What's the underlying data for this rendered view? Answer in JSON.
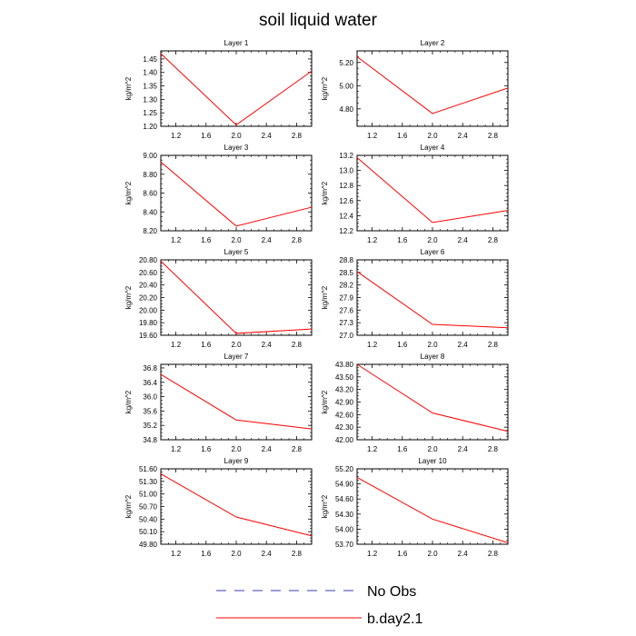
{
  "figure": {
    "title": "soil liquid water",
    "legend": [
      {
        "label": "No Obs",
        "color": "#3b3bb5",
        "style": "dashed"
      },
      {
        "label": "b.day2.1",
        "color": "#ff0000",
        "style": "solid"
      }
    ]
  },
  "chart_data": [
    {
      "type": "line",
      "title": "Layer 1",
      "ylabel": "kg/m^2",
      "xlim": [
        1.0,
        3.0
      ],
      "ylim": [
        1.2,
        1.48
      ],
      "x_ticks": [
        "1.2",
        "1.6",
        "2.0",
        "2.4",
        "2.8"
      ],
      "x_tick_values": [
        1.2,
        1.6,
        2.0,
        2.4,
        2.8
      ],
      "y_ticks": [
        "1.20",
        "1.25",
        "1.30",
        "1.35",
        "1.40",
        "1.45"
      ],
      "y_tick_values": [
        1.2,
        1.25,
        1.3,
        1.35,
        1.4,
        1.45
      ],
      "series": [
        {
          "name": "b.day2.1",
          "x": [
            1,
            2,
            3
          ],
          "values": [
            1.47,
            1.205,
            1.405
          ]
        }
      ]
    },
    {
      "type": "line",
      "title": "Layer 2",
      "ylabel": "kg/m^2",
      "xlim": [
        1.0,
        3.0
      ],
      "ylim": [
        4.65,
        5.3
      ],
      "x_ticks": [
        "1.2",
        "1.6",
        "2.0",
        "2.4",
        "2.8"
      ],
      "x_tick_values": [
        1.2,
        1.6,
        2.0,
        2.4,
        2.8
      ],
      "y_ticks": [
        "4.80",
        "5.00",
        "5.20"
      ],
      "y_tick_values": [
        4.8,
        5.0,
        5.2
      ],
      "series": [
        {
          "name": "b.day2.1",
          "x": [
            1,
            2,
            3
          ],
          "values": [
            5.25,
            4.76,
            4.98
          ]
        }
      ]
    },
    {
      "type": "line",
      "title": "Layer 3",
      "ylabel": "kg/m^2",
      "xlim": [
        1.0,
        3.0
      ],
      "ylim": [
        8.2,
        9.0
      ],
      "x_ticks": [
        "1.2",
        "1.6",
        "2.0",
        "2.4",
        "2.8"
      ],
      "x_tick_values": [
        1.2,
        1.6,
        2.0,
        2.4,
        2.8
      ],
      "y_ticks": [
        "8.20",
        "8.40",
        "8.60",
        "8.80",
        "9.00"
      ],
      "y_tick_values": [
        8.2,
        8.4,
        8.6,
        8.8,
        9.0
      ],
      "series": [
        {
          "name": "b.day2.1",
          "x": [
            1,
            2,
            3
          ],
          "values": [
            8.93,
            8.25,
            8.45
          ]
        }
      ]
    },
    {
      "type": "line",
      "title": "Layer 4",
      "ylabel": "kg/m^2",
      "xlim": [
        1.0,
        3.0
      ],
      "ylim": [
        12.2,
        13.2
      ],
      "x_ticks": [
        "1.2",
        "1.6",
        "2.0",
        "2.4",
        "2.8"
      ],
      "x_tick_values": [
        1.2,
        1.6,
        2.0,
        2.4,
        2.8
      ],
      "y_ticks": [
        "12.2",
        "12.4",
        "12.6",
        "12.8",
        "13.0",
        "13.2"
      ],
      "y_tick_values": [
        12.2,
        12.4,
        12.6,
        12.8,
        13.0,
        13.2
      ],
      "series": [
        {
          "name": "b.day2.1",
          "x": [
            1,
            2,
            3
          ],
          "values": [
            13.17,
            12.31,
            12.47
          ]
        }
      ]
    },
    {
      "type": "line",
      "title": "Layer 5",
      "ylabel": "kg/m^2",
      "xlim": [
        1.0,
        3.0
      ],
      "ylim": [
        19.6,
        20.8
      ],
      "x_ticks": [
        "1.2",
        "1.6",
        "2.0",
        "2.4",
        "2.8"
      ],
      "x_tick_values": [
        1.2,
        1.6,
        2.0,
        2.4,
        2.8
      ],
      "y_ticks": [
        "19.60",
        "19.80",
        "20.00",
        "20.20",
        "20.40",
        "20.60",
        "20.80"
      ],
      "y_tick_values": [
        19.6,
        19.8,
        20.0,
        20.2,
        20.4,
        20.6,
        20.8
      ],
      "series": [
        {
          "name": "b.day2.1",
          "x": [
            1,
            2,
            3
          ],
          "values": [
            20.78,
            19.63,
            19.7
          ]
        }
      ]
    },
    {
      "type": "line",
      "title": "Layer 6",
      "ylabel": "kg/m^2",
      "xlim": [
        1.0,
        3.0
      ],
      "ylim": [
        27.0,
        28.8
      ],
      "x_ticks": [
        "1.2",
        "1.6",
        "2.0",
        "2.4",
        "2.8"
      ],
      "x_tick_values": [
        1.2,
        1.6,
        2.0,
        2.4,
        2.8
      ],
      "y_ticks": [
        "27.0",
        "27.3",
        "27.6",
        "27.9",
        "28.2",
        "28.5",
        "28.8"
      ],
      "y_tick_values": [
        27.0,
        27.3,
        27.6,
        27.9,
        28.2,
        28.5,
        28.8
      ],
      "series": [
        {
          "name": "b.day2.1",
          "x": [
            1,
            2,
            3
          ],
          "values": [
            28.52,
            27.26,
            27.18
          ]
        }
      ]
    },
    {
      "type": "line",
      "title": "Layer 7",
      "ylabel": "kg/m^2",
      "xlim": [
        1.0,
        3.0
      ],
      "ylim": [
        34.8,
        36.9
      ],
      "x_ticks": [
        "1.2",
        "1.6",
        "2.0",
        "2.4",
        "2.8"
      ],
      "x_tick_values": [
        1.2,
        1.6,
        2.0,
        2.4,
        2.8
      ],
      "y_ticks": [
        "34.8",
        "35.2",
        "35.6",
        "36.0",
        "36.4",
        "36.8"
      ],
      "y_tick_values": [
        34.8,
        35.2,
        35.6,
        36.0,
        36.4,
        36.8
      ],
      "series": [
        {
          "name": "b.day2.1",
          "x": [
            1,
            2,
            3
          ],
          "values": [
            36.62,
            35.35,
            35.1
          ]
        }
      ]
    },
    {
      "type": "line",
      "title": "Layer 8",
      "ylabel": "kg/m^2",
      "xlim": [
        1.0,
        3.0
      ],
      "ylim": [
        42.0,
        43.8
      ],
      "x_ticks": [
        "1.2",
        "1.6",
        "2.0",
        "2.4",
        "2.8"
      ],
      "x_tick_values": [
        1.2,
        1.6,
        2.0,
        2.4,
        2.8
      ],
      "y_ticks": [
        "42.00",
        "42.30",
        "42.60",
        "42.90",
        "43.20",
        "43.50",
        "43.80"
      ],
      "y_tick_values": [
        42.0,
        42.3,
        42.6,
        42.9,
        43.2,
        43.5,
        43.8
      ],
      "series": [
        {
          "name": "b.day2.1",
          "x": [
            1,
            2,
            3
          ],
          "values": [
            43.8,
            42.64,
            42.2
          ]
        }
      ]
    },
    {
      "type": "line",
      "title": "Layer 9",
      "ylabel": "kg/m^2",
      "xlim": [
        1.0,
        3.0
      ],
      "ylim": [
        49.8,
        51.6
      ],
      "x_ticks": [
        "1.2",
        "1.6",
        "2.0",
        "2.4",
        "2.8"
      ],
      "x_tick_values": [
        1.2,
        1.6,
        2.0,
        2.4,
        2.8
      ],
      "y_ticks": [
        "49.80",
        "50.10",
        "50.40",
        "50.70",
        "51.00",
        "51.30",
        "51.60"
      ],
      "y_tick_values": [
        49.8,
        50.1,
        50.4,
        50.7,
        51.0,
        51.3,
        51.6
      ],
      "series": [
        {
          "name": "b.day2.1",
          "x": [
            1,
            2,
            3
          ],
          "values": [
            51.48,
            50.45,
            50.0
          ]
        }
      ]
    },
    {
      "type": "line",
      "title": "Layer 10",
      "ylabel": "kg/m^2",
      "xlim": [
        1.0,
        3.0
      ],
      "ylim": [
        53.7,
        55.2
      ],
      "x_ticks": [
        "1.2",
        "1.6",
        "2.0",
        "2.4",
        "2.8"
      ],
      "x_tick_values": [
        1.2,
        1.6,
        2.0,
        2.4,
        2.8
      ],
      "y_ticks": [
        "53.70",
        "54.00",
        "54.30",
        "54.60",
        "54.90",
        "55.20"
      ],
      "y_tick_values": [
        53.7,
        54.0,
        54.3,
        54.6,
        54.9,
        55.2
      ],
      "series": [
        {
          "name": "b.day2.1",
          "x": [
            1,
            2,
            3
          ],
          "values": [
            55.03,
            54.2,
            53.73
          ]
        }
      ]
    }
  ]
}
